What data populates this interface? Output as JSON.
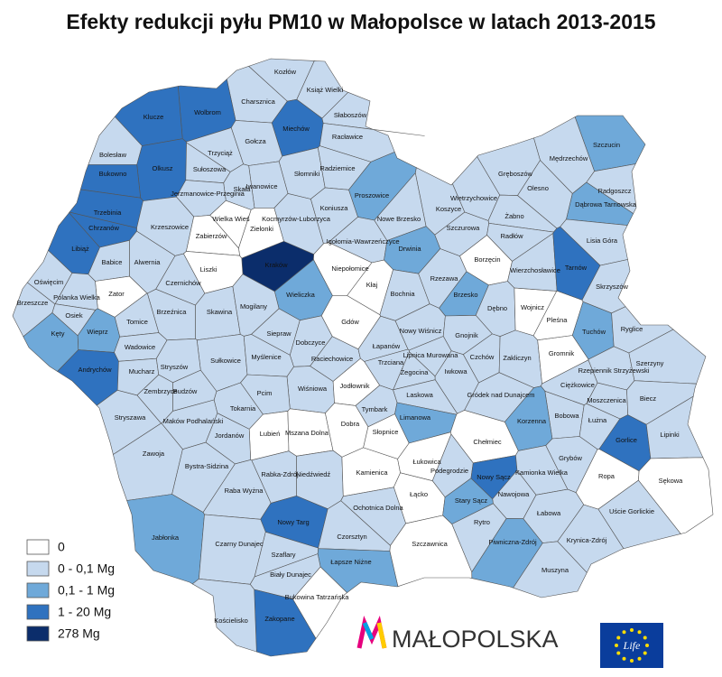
{
  "title": "Efekty redukcji pyłu PM10 w Małopolsce w latach 2013-2015",
  "legend": {
    "items": [
      {
        "label": "0",
        "color": "#ffffff"
      },
      {
        "label": "0 - 0,1 Mg",
        "color": "#c6d9ee"
      },
      {
        "label": "0,1 - 1 Mg",
        "color": "#6fa9d9"
      },
      {
        "label": "1 - 20 Mg",
        "color": "#2f72bf"
      },
      {
        "label": "278 Mg",
        "color": "#0b2d6b"
      }
    ]
  },
  "regions": [
    {
      "name": "Kozłów",
      "class": 1
    },
    {
      "name": "Książ Wielki",
      "class": 1
    },
    {
      "name": "Charsznica",
      "class": 1
    },
    {
      "name": "Wolbrom",
      "class": 3
    },
    {
      "name": "Klucze",
      "class": 3
    },
    {
      "name": "Miechów",
      "class": 3
    },
    {
      "name": "Słaboszów",
      "class": 1
    },
    {
      "name": "Racławice",
      "class": 1
    },
    {
      "name": "Gołcza",
      "class": 1
    },
    {
      "name": "Trzyciąż",
      "class": 1
    },
    {
      "name": "Bolesław",
      "class": 1
    },
    {
      "name": "Olkusz",
      "class": 3
    },
    {
      "name": "Bukowno",
      "class": 3
    },
    {
      "name": "Sułoszowa",
      "class": 1
    },
    {
      "name": "Słomniki",
      "class": 1
    },
    {
      "name": "Radziemice",
      "class": 1
    },
    {
      "name": "Iwanowice",
      "class": 1
    },
    {
      "name": "Skała",
      "class": 1
    },
    {
      "name": "Jerzmanowice-Przeginia",
      "class": 1
    },
    {
      "name": "Proszowice",
      "class": 2
    },
    {
      "name": "Trzebinia",
      "class": 3
    },
    {
      "name": "Koniusza",
      "class": 1
    },
    {
      "name": "Kocmyrzów-Luborzyca",
      "class": 1
    },
    {
      "name": "Wielka Wieś",
      "class": 0
    },
    {
      "name": "Zielonki",
      "class": 0
    },
    {
      "name": "Krzeszowice",
      "class": 1
    },
    {
      "name": "Chrzanów",
      "class": 3
    },
    {
      "name": "Zabierzów",
      "class": 0
    },
    {
      "name": "Igołomia-Wawrzeńczyce",
      "class": 1
    },
    {
      "name": "Nowe Brzesko",
      "class": 1
    },
    {
      "name": "Koszyce",
      "class": 1
    },
    {
      "name": "Drwinia",
      "class": 2
    },
    {
      "name": "Babice",
      "class": 1
    },
    {
      "name": "Alwernia",
      "class": 1
    },
    {
      "name": "Libiąż",
      "class": 3
    },
    {
      "name": "Kraków",
      "class": 4
    },
    {
      "name": "Liszki",
      "class": 0
    },
    {
      "name": "Niepołomice",
      "class": 0
    },
    {
      "name": "Czernichów",
      "class": 1
    },
    {
      "name": "Oświęcim",
      "class": 1
    },
    {
      "name": "Zator",
      "class": 0
    },
    {
      "name": "Polanka Wielka",
      "class": 1
    },
    {
      "name": "Brzeszcze",
      "class": 1
    },
    {
      "name": "Kłaj",
      "class": 0
    },
    {
      "name": "Wieliczka",
      "class": 2
    },
    {
      "name": "Skawina",
      "class": 1
    },
    {
      "name": "Brzeźnica",
      "class": 1
    },
    {
      "name": "Mogilany",
      "class": 1
    },
    {
      "name": "Osiek",
      "class": 1
    },
    {
      "name": "Tomice",
      "class": 1
    },
    {
      "name": "Wieprz",
      "class": 2
    },
    {
      "name": "Kęty",
      "class": 2
    },
    {
      "name": "Gdów",
      "class": 0
    },
    {
      "name": "Siepraw",
      "class": 1
    },
    {
      "name": "Dobczyce",
      "class": 1
    },
    {
      "name": "Bochnia",
      "class": 1
    },
    {
      "name": "Rzezawa",
      "class": 1
    },
    {
      "name": "Brzesko",
      "class": 2
    },
    {
      "name": "Dębno",
      "class": 1
    },
    {
      "name": "Wojnicz",
      "class": 0
    },
    {
      "name": "Wadowice",
      "class": 1
    },
    {
      "name": "Sułkowice",
      "class": 1
    },
    {
      "name": "Myślenice",
      "class": 1
    },
    {
      "name": "Raciechowice",
      "class": 1
    },
    {
      "name": "Łapanów",
      "class": 1
    },
    {
      "name": "Nowy Wiśnicz",
      "class": 1
    },
    {
      "name": "Gnojnik",
      "class": 1
    },
    {
      "name": "Andrychów",
      "class": 3
    },
    {
      "name": "Mucharz",
      "class": 1
    },
    {
      "name": "Stryszów",
      "class": 1
    },
    {
      "name": "Lipnica Murowana",
      "class": 1
    },
    {
      "name": "Trzciana",
      "class": 1
    },
    {
      "name": "Czchów",
      "class": 1
    },
    {
      "name": "Zakliczyn",
      "class": 1
    },
    {
      "name": "Gromnik",
      "class": 0
    },
    {
      "name": "Pleśna",
      "class": 0
    },
    {
      "name": "Tuchów",
      "class": 2
    },
    {
      "name": "Ryglice",
      "class": 1
    },
    {
      "name": "Szerzyny",
      "class": 1
    },
    {
      "name": "Rzepiennik Strzyżewski",
      "class": 1
    },
    {
      "name": "Żegocina",
      "class": 1
    },
    {
      "name": "Iwkowa",
      "class": 1
    },
    {
      "name": "Wiśniowa",
      "class": 1
    },
    {
      "name": "Pcim",
      "class": 1
    },
    {
      "name": "Budzów",
      "class": 1
    },
    {
      "name": "Zembrzyce",
      "class": 1
    },
    {
      "name": "Jodłownik",
      "class": 0
    },
    {
      "name": "Laskowa",
      "class": 1
    },
    {
      "name": "Gródek nad Dunajcem",
      "class": 1
    },
    {
      "name": "Ciężkowice",
      "class": 1
    },
    {
      "name": "Moszczenica",
      "class": 1
    },
    {
      "name": "Biecz",
      "class": 1
    },
    {
      "name": "Stryszawa",
      "class": 1
    },
    {
      "name": "Maków Podhalański",
      "class": 1
    },
    {
      "name": "Tokarnia",
      "class": 1
    },
    {
      "name": "Tymbark",
      "class": 1
    },
    {
      "name": "Limanowa",
      "class": 2
    },
    {
      "name": "Bobowa",
      "class": 1
    },
    {
      "name": "Korzenna",
      "class": 2
    },
    {
      "name": "Łużna",
      "class": 1
    },
    {
      "name": "Gorlice",
      "class": 3
    },
    {
      "name": "Lipinki",
      "class": 1
    },
    {
      "name": "Lubień",
      "class": 0
    },
    {
      "name": "Mszana Dolna",
      "class": 0
    },
    {
      "name": "Dobra",
      "class": 0
    },
    {
      "name": "Słopnice",
      "class": 0
    },
    {
      "name": "Jordanów",
      "class": 1
    },
    {
      "name": "Chełmiec",
      "class": 0
    },
    {
      "name": "Zawoja",
      "class": 1
    },
    {
      "name": "Bystra-Sidzina",
      "class": 1
    },
    {
      "name": "Rabka-Zdrój",
      "class": 1
    },
    {
      "name": "Niedźwiedź",
      "class": 1
    },
    {
      "name": "Kamienica",
      "class": 0
    },
    {
      "name": "Łukowica",
      "class": 0
    },
    {
      "name": "Podegrodzie",
      "class": 1
    },
    {
      "name": "Nowy Sącz",
      "class": 3
    },
    {
      "name": "Kamionka Wielka",
      "class": 1
    },
    {
      "name": "Grybów",
      "class": 1
    },
    {
      "name": "Ropa",
      "class": 0
    },
    {
      "name": "Sękowa",
      "class": 0
    },
    {
      "name": "Raba Wyżna",
      "class": 1
    },
    {
      "name": "Łącko",
      "class": 0
    },
    {
      "name": "Ochotnica Dolna",
      "class": 1
    },
    {
      "name": "Nawojowa",
      "class": 1
    },
    {
      "name": "Stary Sącz",
      "class": 2
    },
    {
      "name": "Łabowa",
      "class": 1
    },
    {
      "name": "Uście Gorlickie",
      "class": 1
    },
    {
      "name": "Jabłonka",
      "class": 2
    },
    {
      "name": "Nowy Targ",
      "class": 3
    },
    {
      "name": "Rytro",
      "class": 1
    },
    {
      "name": "Czorsztyn",
      "class": 1
    },
    {
      "name": "Piwniczna-Zdrój",
      "class": 2
    },
    {
      "name": "Krynica-Zdrój",
      "class": 1
    },
    {
      "name": "Szczawnica",
      "class": 0
    },
    {
      "name": "Czarny Dunajec",
      "class": 1
    },
    {
      "name": "Szaflary",
      "class": 1
    },
    {
      "name": "Łapsze Niżne",
      "class": 2
    },
    {
      "name": "Muszyna",
      "class": 1
    },
    {
      "name": "Biały Dunajec",
      "class": 1
    },
    {
      "name": "Bukowina Tatrzańska",
      "class": 0
    },
    {
      "name": "Zakopane",
      "class": 3
    },
    {
      "name": "Kościelisko",
      "class": 1
    },
    {
      "name": "Szczucin",
      "class": 2
    },
    {
      "name": "Mędrzechów",
      "class": 1
    },
    {
      "name": "Gręboszów",
      "class": 1
    },
    {
      "name": "Wietrzychowice",
      "class": 1
    },
    {
      "name": "Olesno",
      "class": 1
    },
    {
      "name": "Radgoszcz",
      "class": 1
    },
    {
      "name": "Dąbrowa Tarnowska",
      "class": 2
    },
    {
      "name": "Żabno",
      "class": 1
    },
    {
      "name": "Szczurowa",
      "class": 1
    },
    {
      "name": "Radłów",
      "class": 1
    },
    {
      "name": "Lisia Góra",
      "class": 1
    },
    {
      "name": "Borzęcin",
      "class": 0
    },
    {
      "name": "Wierzchosławice",
      "class": 1
    },
    {
      "name": "Tarnów",
      "class": 3
    },
    {
      "name": "Skrzyszów",
      "class": 1
    }
  ],
  "logo": {
    "text": "MAŁOPOLSKA",
    "badge": "Life"
  }
}
